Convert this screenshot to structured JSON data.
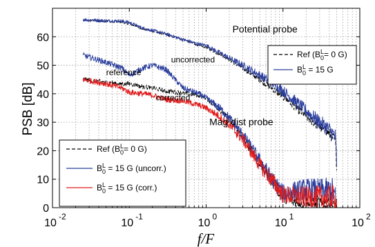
{
  "chart_data": {
    "type": "line",
    "xscale": "log",
    "xlim": [
      0.01,
      100
    ],
    "ylim": [
      0,
      70
    ],
    "grid": true,
    "xlabel": "f/F",
    "ylabel": "PSB [dB]",
    "xticks": [
      {
        "value": 0.01,
        "base": "10",
        "exp": "-2"
      },
      {
        "value": 0.1,
        "base": "10",
        "exp": "-1"
      },
      {
        "value": 1,
        "base": "10",
        "exp": "0"
      },
      {
        "value": 10,
        "base": "10",
        "exp": "1"
      },
      {
        "value": 100,
        "base": "10",
        "exp": "2"
      }
    ],
    "yticks": [
      "0",
      "10",
      "20",
      "30",
      "40",
      "50",
      "60"
    ],
    "annotations": [
      {
        "text": "Potential probe",
        "x": 2.2,
        "y": 61.5
      },
      {
        "text": "uncorrected",
        "x": 0.35,
        "y": 51
      },
      {
        "text": "reference",
        "x": 0.05,
        "y": 46.5
      },
      {
        "text": "corrected",
        "x": 0.22,
        "y": 37.7
      },
      {
        "text": "Mag dist probe",
        "x": 1.1,
        "y": 29
      }
    ],
    "legends": [
      {
        "location": "upper-right",
        "entries": [
          {
            "label": "Ref (B",
            "sup": "L",
            "sub": "0",
            "tail": "= 0 G)",
            "color": "#000000",
            "dash": true
          },
          {
            "label": "B",
            "sup": "L",
            "sub": "0",
            "tail": " = 15 G",
            "color": "#2b3e9c",
            "dash": false
          }
        ]
      },
      {
        "location": "lower-left",
        "entries": [
          {
            "label": "Ref (B",
            "sup": "L",
            "sub": "0",
            "tail": "= 0 G)",
            "color": "#000000",
            "dash": true
          },
          {
            "label": "B",
            "sup": "L",
            "sub": "0",
            "tail": " = 15 G (uncorr.)",
            "color": "#2b3e9c",
            "dash": false
          },
          {
            "label": "B",
            "sup": "L",
            "sub": "0",
            "tail": " = 15 G (corr.)",
            "color": "#e01b1b",
            "dash": false
          }
        ]
      }
    ],
    "series": [
      {
        "name": "Potential probe Ref (B0L = 0 G)",
        "color": "#000000",
        "dash": true,
        "noise": 0.4,
        "x": [
          0.025,
          0.05,
          0.08,
          0.1,
          0.15,
          0.2,
          0.3,
          0.5,
          0.8,
          1,
          2,
          3,
          5,
          8,
          10,
          15,
          20,
          30,
          40,
          48,
          50
        ],
        "y": [
          65.8,
          65.5,
          65.2,
          64.5,
          62.8,
          62.0,
          60.8,
          59.0,
          57.0,
          56.2,
          52.0,
          49.0,
          45.0,
          41.0,
          39.0,
          35.0,
          32.0,
          28.5,
          26.0,
          23.5,
          15.0
        ]
      },
      {
        "name": "Potential probe B0L = 15 G",
        "color": "#2b3e9c",
        "dash": false,
        "noise": 0.6,
        "x": [
          0.025,
          0.05,
          0.08,
          0.1,
          0.15,
          0.2,
          0.3,
          0.5,
          0.8,
          1,
          2,
          3,
          5,
          8,
          10,
          15,
          20,
          30,
          40,
          48,
          50
        ],
        "y": [
          66.0,
          65.6,
          65.5,
          65.0,
          63.0,
          62.2,
          61.0,
          59.0,
          57.4,
          57.0,
          52.5,
          50.0,
          46.5,
          43.0,
          41.0,
          37.0,
          34.0,
          30.0,
          27.5,
          25.0,
          16.0
        ]
      },
      {
        "name": "Mag dist probe Ref (B0L = 0 G)",
        "color": "#000000",
        "dash": true,
        "noise": 0.8,
        "x": [
          0.025,
          0.05,
          0.08,
          0.1,
          0.15,
          0.2,
          0.3,
          0.5,
          0.8,
          1,
          1.5,
          2,
          3,
          5,
          7,
          10,
          15,
          20,
          30,
          45,
          50
        ],
        "y": [
          45.0,
          44.0,
          43.5,
          43.5,
          42.5,
          42.0,
          41.0,
          40.2,
          39.5,
          38.5,
          34.5,
          31.0,
          25.0,
          16.0,
          10.0,
          4.0,
          2.0,
          1.5,
          1.2,
          1.0,
          0.5
        ]
      },
      {
        "name": "Mag dist probe B0L = 15 G (uncorr.)",
        "color": "#2b3e9c",
        "dash": false,
        "noise": 1.0,
        "x": [
          0.025,
          0.05,
          0.08,
          0.1,
          0.15,
          0.2,
          0.3,
          0.5,
          0.8,
          1,
          1.5,
          2,
          3,
          5,
          7,
          10,
          15,
          20,
          30,
          45,
          50
        ],
        "y": [
          53.5,
          51.0,
          49.0,
          46.5,
          49.0,
          50.0,
          48.5,
          42.0,
          40.0,
          38.5,
          35.0,
          31.5,
          25.5,
          16.5,
          10.5,
          5.0,
          6.0,
          6.5,
          6.0,
          6.0,
          1.0
        ]
      },
      {
        "name": "Mag dist probe B0L = 15 G (corr.)",
        "color": "#e01b1b",
        "dash": false,
        "noise": 1.0,
        "x": [
          0.025,
          0.05,
          0.08,
          0.1,
          0.15,
          0.2,
          0.3,
          0.5,
          0.8,
          1,
          1.5,
          2,
          3,
          5,
          7,
          10,
          15,
          20,
          30,
          45,
          50
        ],
        "y": [
          45.0,
          43.5,
          42.0,
          40.5,
          40.0,
          39.5,
          38.0,
          37.5,
          36.0,
          35.0,
          32.0,
          29.0,
          24.0,
          15.0,
          10.0,
          4.5,
          4.0,
          3.5,
          3.5,
          3.5,
          1.0
        ]
      }
    ]
  }
}
